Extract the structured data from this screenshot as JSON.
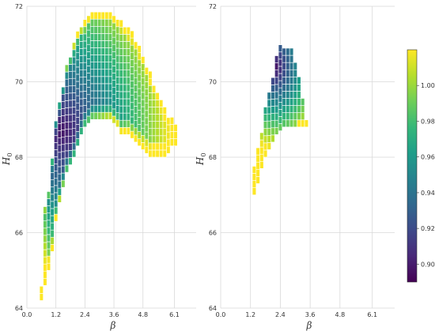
{
  "colors": {
    "viridis": [
      "#440154",
      "#482878",
      "#3e4989",
      "#31688e",
      "#26828e",
      "#1f9e89",
      "#35b779",
      "#6ece58",
      "#b5de2b",
      "#fde725"
    ],
    "grid": "#d9d9d9",
    "cell_border": "#ffffff"
  },
  "chart_data": [
    {
      "type": "heatmap",
      "xlabel": "β",
      "ylabel": "H0",
      "xlim": [
        0,
        7.0
      ],
      "ylim": [
        64,
        72
      ],
      "xticks": [
        "0.0",
        "1.2",
        "2.4",
        "3.6",
        "4.8",
        "6.1"
      ],
      "yticks": [
        "64",
        "66",
        "68",
        "70",
        "72"
      ],
      "grid": true,
      "cell_dx": 0.15,
      "cell_dy": 0.19,
      "value_field": "normalized level (0.90–1.02)",
      "region": [
        [
          0.6,
          64.2,
          64.4
        ],
        [
          0.75,
          64.6,
          66.6
        ],
        [
          0.9,
          65.0,
          67.0
        ],
        [
          1.05,
          65.5,
          67.8
        ],
        [
          1.2,
          66.3,
          68.8
        ],
        [
          1.35,
          66.8,
          69.3
        ],
        [
          1.5,
          67.2,
          69.8
        ],
        [
          1.65,
          67.6,
          70.3
        ],
        [
          1.8,
          67.8,
          70.6
        ],
        [
          1.95,
          68.0,
          70.9
        ],
        [
          2.1,
          68.3,
          71.2
        ],
        [
          2.25,
          68.6,
          71.4
        ],
        [
          2.4,
          68.8,
          71.5
        ],
        [
          2.55,
          68.9,
          71.7
        ],
        [
          2.7,
          69.0,
          71.8
        ],
        [
          2.85,
          69.0,
          71.8
        ],
        [
          3.0,
          69.0,
          71.8
        ],
        [
          3.15,
          69.0,
          71.8
        ],
        [
          3.3,
          69.0,
          71.8
        ],
        [
          3.45,
          69.0,
          71.8
        ],
        [
          3.6,
          68.9,
          71.7
        ],
        [
          3.75,
          68.8,
          71.6
        ],
        [
          3.9,
          68.6,
          71.5
        ],
        [
          4.05,
          68.6,
          71.4
        ],
        [
          4.2,
          68.6,
          71.3
        ],
        [
          4.35,
          68.5,
          71.2
        ],
        [
          4.5,
          68.4,
          71.0
        ],
        [
          4.65,
          68.3,
          70.8
        ],
        [
          4.8,
          68.2,
          70.6
        ],
        [
          4.95,
          68.1,
          70.3
        ],
        [
          5.1,
          68.0,
          70.1
        ],
        [
          5.25,
          68.0,
          69.8
        ],
        [
          5.4,
          68.0,
          69.6
        ],
        [
          5.55,
          68.0,
          69.4
        ],
        [
          5.7,
          68.0,
          69.2
        ],
        [
          5.85,
          68.1,
          69.0
        ],
        [
          6.0,
          68.3,
          68.9
        ],
        [
          6.15,
          68.3,
          68.7
        ]
      ],
      "min_point": [
        1.45,
        68.6
      ]
    },
    {
      "type": "heatmap",
      "xlabel": "β",
      "ylabel": "H0",
      "xlim": [
        0,
        7.0
      ],
      "ylim": [
        64,
        72
      ],
      "xticks": [
        "0.0",
        "1.2",
        "2.4",
        "3.6",
        "4.8",
        "6.1"
      ],
      "yticks": [
        "64",
        "66",
        "68",
        "70",
        "72"
      ],
      "grid": true,
      "cell_dx": 0.15,
      "cell_dy": 0.19,
      "region": [
        [
          1.35,
          67.0,
          67.6
        ],
        [
          1.5,
          67.3,
          68.1
        ],
        [
          1.65,
          67.7,
          68.6
        ],
        [
          1.8,
          68.0,
          69.2
        ],
        [
          1.95,
          68.2,
          69.7
        ],
        [
          2.1,
          68.4,
          70.1
        ],
        [
          2.25,
          68.6,
          70.5
        ],
        [
          2.4,
          68.7,
          70.8
        ],
        [
          2.55,
          68.8,
          70.8
        ],
        [
          2.7,
          68.8,
          70.8
        ],
        [
          2.85,
          68.8,
          70.7
        ],
        [
          3.0,
          68.8,
          70.4
        ],
        [
          3.15,
          68.8,
          70.0
        ],
        [
          3.3,
          68.8,
          69.5
        ],
        [
          3.45,
          68.8,
          68.9
        ]
      ],
      "min_point": [
        2.2,
        70.3
      ]
    }
  ],
  "colorbar": {
    "ticks": [
      "0.90",
      "0.92",
      "0.94",
      "0.96",
      "0.98",
      "1.00"
    ],
    "range": [
      0.89,
      1.02
    ]
  }
}
